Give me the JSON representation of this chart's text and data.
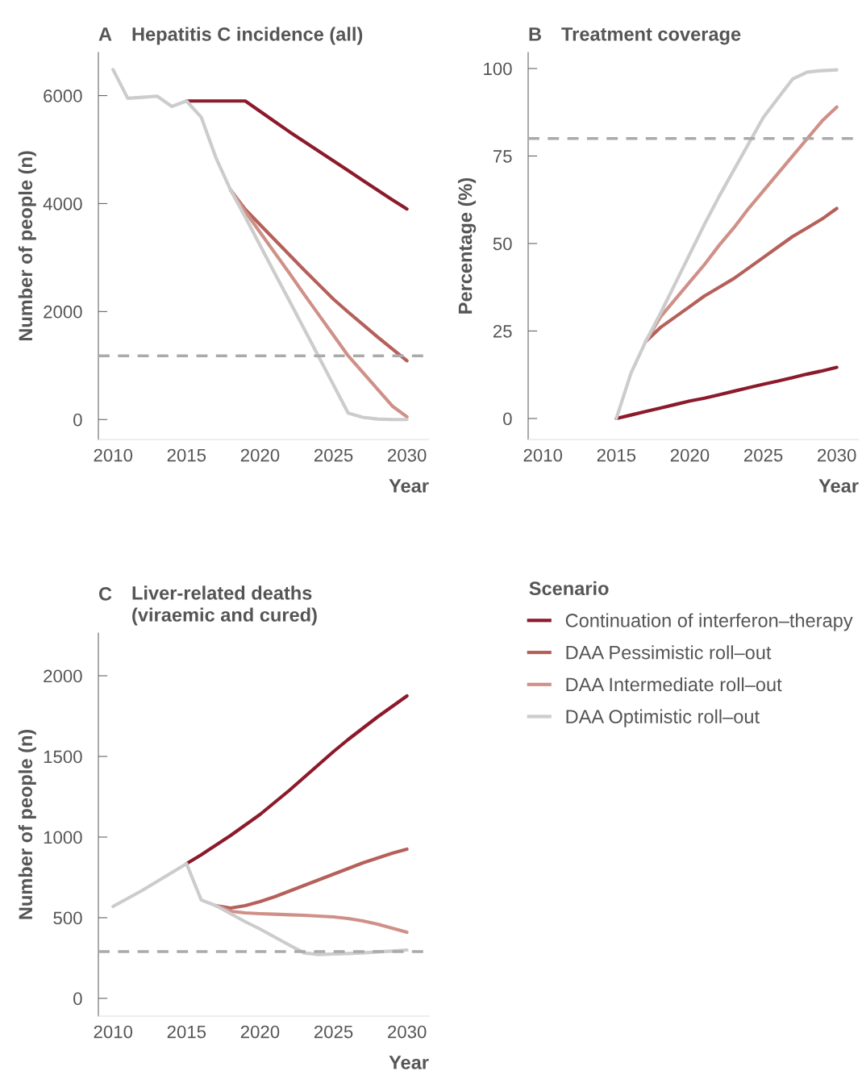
{
  "chart_data": [
    {
      "type": "line",
      "title": "Hepatitis C incidence (all)",
      "annotations": [
        "A"
      ],
      "xlabel": "Year",
      "ylabel": "Number of people (n)",
      "x": [
        2010,
        2011,
        2012,
        2013,
        2014,
        2015,
        2016,
        2017,
        2018,
        2019,
        2020,
        2021,
        2022,
        2023,
        2024,
        2025,
        2026,
        2027,
        2028,
        2029,
        2030
      ],
      "xlim": [
        2009,
        2031.5
      ],
      "xticks": [
        2010,
        2015,
        2020,
        2025,
        2030
      ],
      "ylim": [
        -370,
        6800
      ],
      "yticks": [
        0,
        2000,
        4000,
        6000
      ],
      "grid": false,
      "legend": false,
      "ref_lines": [
        {
          "axis": "y",
          "value": 1180,
          "color": "#aaaaaa",
          "line_style": "dashed"
        }
      ],
      "series": [
        {
          "color": "#8b1a2b",
          "values": [
            null,
            null,
            null,
            null,
            null,
            5900,
            5900,
            5900,
            5900,
            5900,
            5710,
            5520,
            5330,
            5150,
            4970,
            4790,
            4610,
            4430,
            4250,
            4070,
            3900
          ]
        },
        {
          "color": "#b5605a",
          "values": [
            null,
            null,
            null,
            null,
            null,
            null,
            null,
            null,
            4250,
            3890,
            3610,
            3330,
            3050,
            2770,
            2500,
            2230,
            1990,
            1760,
            1530,
            1310,
            1090
          ]
        },
        {
          "color": "#cf9088",
          "values": [
            null,
            null,
            null,
            null,
            null,
            null,
            null,
            null,
            4250,
            3850,
            3470,
            3090,
            2710,
            2320,
            1940,
            1560,
            1180,
            870,
            560,
            250,
            50
          ]
        },
        {
          "color": "#cccccc",
          "values": [
            6480,
            5950,
            5970,
            5990,
            5800,
            5900,
            5600,
            4850,
            4250,
            3750,
            3230,
            2710,
            2200,
            1680,
            1160,
            640,
            120,
            40,
            10,
            0,
            0
          ]
        }
      ]
    },
    {
      "type": "line",
      "title": "Treatment coverage",
      "annotations": [
        "B"
      ],
      "xlabel": "Year",
      "ylabel": "Percentage (%)",
      "x": [
        2015,
        2016,
        2017,
        2018,
        2019,
        2020,
        2021,
        2022,
        2023,
        2024,
        2025,
        2026,
        2027,
        2028,
        2029,
        2030
      ],
      "xlim": [
        2009,
        2031.5
      ],
      "xticks": [
        2010,
        2015,
        2020,
        2025,
        2030
      ],
      "ylim": [
        -6,
        104.6
      ],
      "yticks": [
        0,
        25,
        50,
        75,
        100
      ],
      "grid": false,
      "legend": false,
      "ref_lines": [
        {
          "axis": "y",
          "value": 80,
          "color": "#aaaaaa",
          "line_style": "dashed"
        }
      ],
      "series": [
        {
          "color": "#8b1a2b",
          "values": [
            0,
            1,
            2,
            3,
            4,
            5,
            5.8,
            6.8,
            7.8,
            8.8,
            9.8,
            10.7,
            11.7,
            12.7,
            13.6,
            14.6
          ]
        },
        {
          "color": "#b5605a",
          "values": [
            null,
            null,
            22,
            26,
            29,
            32,
            35,
            37.5,
            40,
            43,
            46,
            49,
            52,
            54.5,
            57,
            60
          ]
        },
        {
          "color": "#cf9088",
          "values": [
            null,
            null,
            22,
            29,
            34,
            39,
            44,
            49.5,
            54.5,
            60,
            65,
            70,
            75,
            80,
            85,
            89
          ]
        },
        {
          "color": "#cccccc",
          "values": [
            0,
            13,
            22,
            30,
            38.5,
            47,
            55.5,
            63.5,
            71,
            78.5,
            86,
            91.5,
            97,
            99,
            99.4,
            99.6
          ]
        }
      ]
    },
    {
      "type": "line",
      "title": "Liver-related deaths\n(viraemic and cured)",
      "annotations": [
        "C"
      ],
      "xlabel": "Year",
      "ylabel": "Number of people (n)",
      "x": [
        2010,
        2011,
        2012,
        2013,
        2014,
        2015,
        2016,
        2017,
        2018,
        2019,
        2020,
        2021,
        2022,
        2023,
        2024,
        2025,
        2026,
        2027,
        2028,
        2029,
        2030
      ],
      "xlim": [
        2009,
        2031.5
      ],
      "xticks": [
        2010,
        2015,
        2020,
        2025,
        2030
      ],
      "ylim": [
        -110,
        2265
      ],
      "yticks": [
        0,
        500,
        1000,
        1500,
        2000
      ],
      "grid": false,
      "legend": "right",
      "legend_title": "Scenario",
      "ref_lines": [
        {
          "axis": "y",
          "value": 290,
          "color": "#aaaaaa",
          "line_style": "dashed"
        }
      ],
      "series": [
        {
          "name": "Continuation of interferon–therapy",
          "color": "#8b1a2b",
          "values": [
            null,
            null,
            null,
            null,
            null,
            835,
            890,
            950,
            1010,
            1075,
            1140,
            1215,
            1290,
            1370,
            1450,
            1530,
            1605,
            1675,
            1745,
            1810,
            1875
          ]
        },
        {
          "name": "DAA Pessimistic roll–out",
          "color": "#b5605a",
          "values": [
            null,
            null,
            null,
            null,
            null,
            null,
            null,
            575,
            560,
            575,
            600,
            630,
            665,
            700,
            735,
            770,
            805,
            840,
            870,
            900,
            925
          ]
        },
        {
          "name": "DAA Intermediate roll–out",
          "color": "#cf9088",
          "values": [
            null,
            null,
            null,
            null,
            null,
            null,
            null,
            575,
            540,
            530,
            525,
            522,
            518,
            515,
            510,
            505,
            495,
            480,
            460,
            435,
            410
          ]
        },
        {
          "name": "DAA Optimistic roll–out",
          "color": "#cccccc",
          "values": [
            570,
            620,
            670,
            725,
            780,
            835,
            610,
            575,
            525,
            475,
            430,
            380,
            330,
            282,
            272,
            275,
            278,
            282,
            288,
            293,
            300
          ]
        }
      ]
    }
  ]
}
